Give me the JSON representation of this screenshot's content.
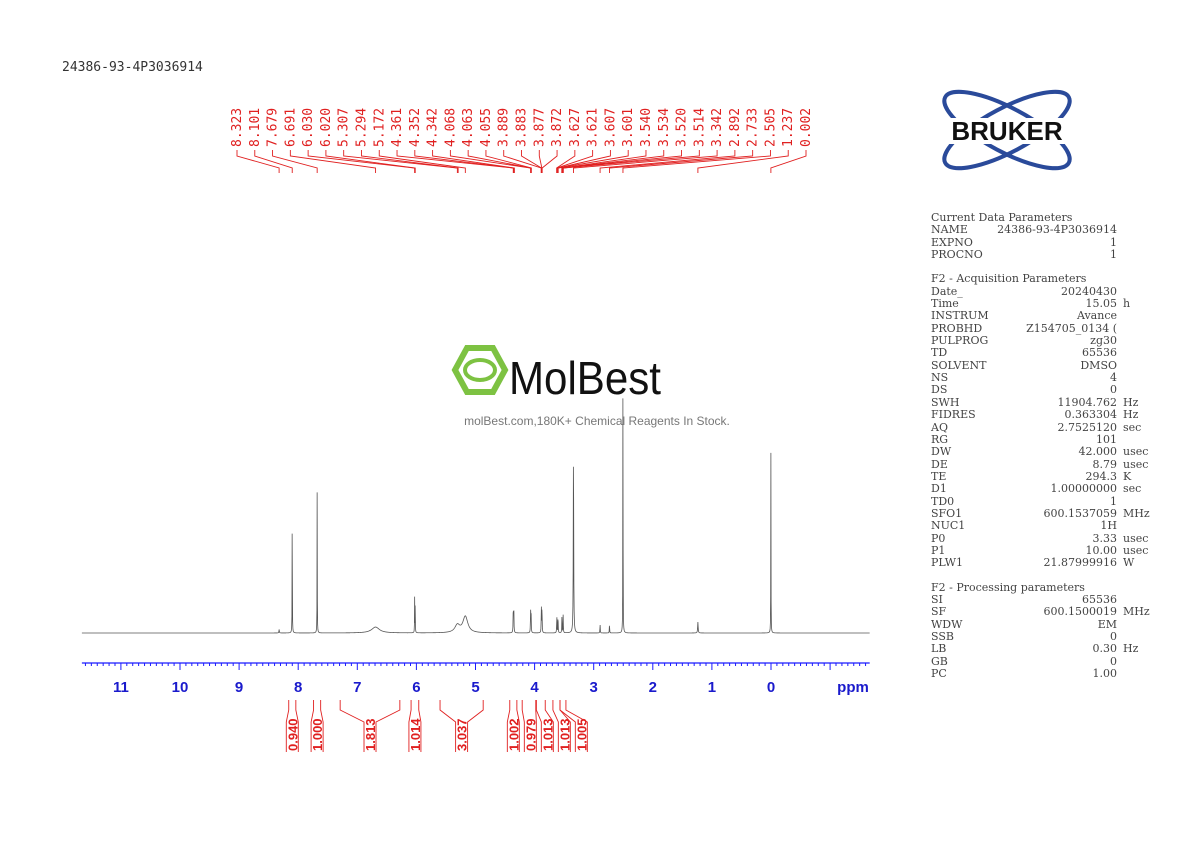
{
  "chart_data": {
    "type": "line",
    "title": "24386-93-4P3036914",
    "xlabel": "ppm",
    "xlim": [
      11.66,
      -1.67
    ],
    "x_reversed": true,
    "x_ticks": [
      11,
      10,
      9,
      8,
      7,
      6,
      5,
      4,
      3,
      2,
      1,
      0
    ],
    "grid": false,
    "line_color": "#555555",
    "axis_color": "#1a1aff",
    "label_color": "#e02020",
    "peaks": [
      {
        "ppm": 8.323,
        "intensity": 1.2,
        "width": 0.004
      },
      {
        "ppm": 8.101,
        "intensity": 51.7,
        "width": 0.002
      },
      {
        "ppm": 7.679,
        "intensity": 50.0,
        "width": 0.002
      },
      {
        "ppm": 6.691,
        "intensity": 2.0,
        "width": 0.08
      },
      {
        "ppm": 6.03,
        "intensity": 12.0,
        "width": 0.002
      },
      {
        "ppm": 6.02,
        "intensity": 12.0,
        "width": 0.002
      },
      {
        "ppm": 5.307,
        "intensity": 2.5,
        "width": 0.05
      },
      {
        "ppm": 5.172,
        "intensity": 5.5,
        "width": 0.05
      },
      {
        "ppm": 4.361,
        "intensity": 9.0,
        "width": 0.003
      },
      {
        "ppm": 4.352,
        "intensity": 9.0,
        "width": 0.003
      },
      {
        "ppm": 4.068,
        "intensity": 7.5,
        "width": 0.003
      },
      {
        "ppm": 4.06,
        "intensity": 7.5,
        "width": 0.003
      },
      {
        "ppm": 3.886,
        "intensity": 9.0,
        "width": 0.003
      },
      {
        "ppm": 3.875,
        "intensity": 9.0,
        "width": 0.003
      },
      {
        "ppm": 3.624,
        "intensity": 6.0,
        "width": 0.003
      },
      {
        "ppm": 3.604,
        "intensity": 6.0,
        "width": 0.003
      },
      {
        "ppm": 3.537,
        "intensity": 6.0,
        "width": 0.003
      },
      {
        "ppm": 3.517,
        "intensity": 6.0,
        "width": 0.003
      },
      {
        "ppm": 3.342,
        "intensity": 65.0,
        "width": 0.004
      },
      {
        "ppm": 2.892,
        "intensity": 3.0,
        "width": 0.003
      },
      {
        "ppm": 2.733,
        "intensity": 3.0,
        "width": 0.003
      },
      {
        "ppm": 2.505,
        "intensity": 100.0,
        "width": 0.002
      },
      {
        "ppm": 1.237,
        "intensity": 3.7,
        "width": 0.005
      },
      {
        "ppm": 0.002,
        "intensity": 61.5,
        "width": 0.002
      }
    ],
    "peak_labels": [
      "8.323",
      "8.101",
      "7.679",
      "6.691",
      "6.030",
      "6.020",
      "5.307",
      "5.294",
      "5.172",
      "4.361",
      "4.352",
      "4.342",
      "4.068",
      "4.063",
      "4.055",
      "3.889",
      "3.883",
      "3.877",
      "3.872",
      "3.627",
      "3.621",
      "3.607",
      "3.601",
      "3.540",
      "3.534",
      "3.520",
      "3.514",
      "3.342",
      "2.892",
      "2.733",
      "2.505",
      "1.237",
      "0.002"
    ],
    "integrals": [
      {
        "from": 8.16,
        "to": 8.04,
        "value": "0.940"
      },
      {
        "from": 7.74,
        "to": 7.62,
        "value": "1.000"
      },
      {
        "from": 7.29,
        "to": 6.28,
        "value": "1.813"
      },
      {
        "from": 6.09,
        "to": 5.96,
        "value": "1.014"
      },
      {
        "from": 5.6,
        "to": 4.87,
        "value": "3.037"
      },
      {
        "from": 4.42,
        "to": 4.3,
        "value": "1.002"
      },
      {
        "from": 4.21,
        "to": 3.98,
        "value": "0.979"
      },
      {
        "from": 3.97,
        "to": 3.82,
        "value": "1.013"
      },
      {
        "from": 3.69,
        "to": 3.57,
        "value": "1.013"
      },
      {
        "from": 3.57,
        "to": 3.47,
        "value": "1.005"
      }
    ]
  },
  "header": {
    "title": "24386-93-4P3036914"
  },
  "logo": {
    "brand": "BRUKER",
    "color": "#2a4a9a"
  },
  "watermark": {
    "brand": "MolBest",
    "tagline": "molBest.com,180K+ Chemical Reagents In Stock.",
    "color": "#7dc242"
  },
  "parameters": {
    "sections": [
      {
        "title": "Current Data Parameters",
        "rows": [
          [
            "NAME",
            "24386-93-4P3036914",
            ""
          ],
          [
            "EXPNO",
            "1",
            ""
          ],
          [
            "PROCNO",
            "1",
            ""
          ]
        ]
      },
      {
        "title": "F2 - Acquisition Parameters",
        "rows": [
          [
            "Date_",
            "20240430",
            ""
          ],
          [
            "Time",
            "15.05",
            "h"
          ],
          [
            "INSTRUM",
            "Avance",
            ""
          ],
          [
            "PROBHD",
            "Z154705_0134 (",
            ""
          ],
          [
            "PULPROG",
            "zg30",
            ""
          ],
          [
            "TD",
            "65536",
            ""
          ],
          [
            "SOLVENT",
            "DMSO",
            ""
          ],
          [
            "NS",
            "4",
            ""
          ],
          [
            "DS",
            "0",
            ""
          ],
          [
            "SWH",
            "11904.762",
            "Hz"
          ],
          [
            "FIDRES",
            "0.363304",
            "Hz"
          ],
          [
            "AQ",
            "2.7525120",
            "sec"
          ],
          [
            "RG",
            "101",
            ""
          ],
          [
            "DW",
            "42.000",
            "usec"
          ],
          [
            "DE",
            "8.79",
            "usec"
          ],
          [
            "TE",
            "294.3",
            "K"
          ],
          [
            "D1",
            "1.00000000",
            "sec"
          ],
          [
            "TD0",
            "1",
            ""
          ],
          [
            "SFO1",
            "600.1537059",
            "MHz"
          ],
          [
            "NUC1",
            "1H",
            ""
          ],
          [
            "P0",
            "3.33",
            "usec"
          ],
          [
            "P1",
            "10.00",
            "usec"
          ],
          [
            "PLW1",
            "21.87999916",
            "W"
          ]
        ]
      },
      {
        "title": "F2 - Processing parameters",
        "rows": [
          [
            "SI",
            "65536",
            ""
          ],
          [
            "SF",
            "600.1500019",
            "MHz"
          ],
          [
            "WDW",
            "EM",
            ""
          ],
          [
            "SSB",
            "0",
            ""
          ],
          [
            "LB",
            "0.30",
            "Hz"
          ],
          [
            "GB",
            "0",
            ""
          ],
          [
            "PC",
            "1.00",
            ""
          ]
        ]
      }
    ]
  }
}
